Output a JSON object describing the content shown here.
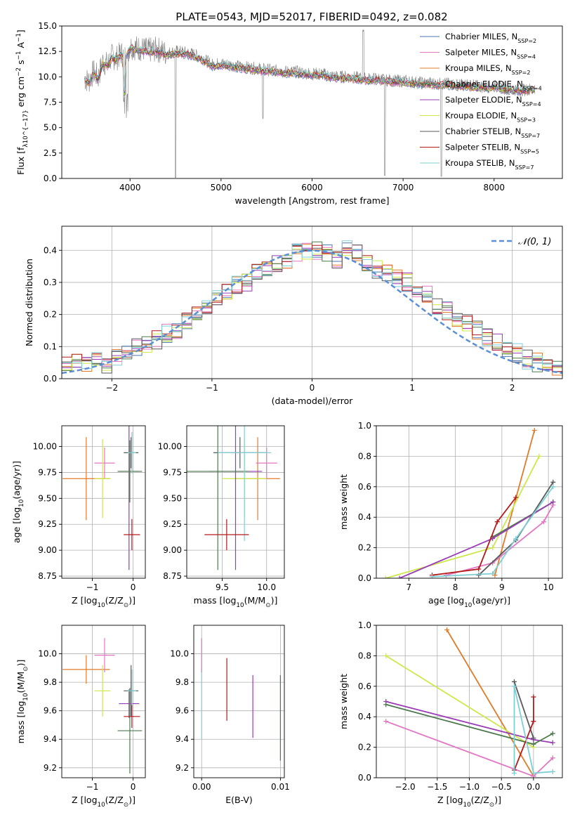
{
  "colors": {
    "chab_miles": "#4878b0",
    "salp_miles": "#e377c2",
    "krou_miles": "#e07b28",
    "chab_elodie": "#4d7a4d",
    "salp_elodie": "#9a3cb5",
    "krou_elodie": "#cde84a",
    "chab_stelib": "#5a5a5a",
    "salp_stelib": "#b31b1b",
    "krou_stelib": "#7ed0d6",
    "normal": "#5b8fd6",
    "grid": "#b0b0b0"
  },
  "chart_data": [
    {
      "type": "line",
      "title": "PLATE=0543, MJD=52017, FIBERID=0492, z=0.082",
      "xlabel": "wavelength [Angstrom, rest frame]",
      "ylabel": "Flux [f_λ 10^-17 erg cm^-2 s^-1 A^-1]",
      "xlim": [
        3250,
        8750
      ],
      "ylim": [
        0,
        15
      ],
      "xticks": [
        4000,
        5000,
        6000,
        7000,
        8000
      ],
      "yticks": [
        0.0,
        2.5,
        5.0,
        7.5,
        10.0,
        12.5,
        15.0
      ],
      "grid": false,
      "legend_position": "top-right",
      "legend": [
        {
          "label": "Chabrier MILES, N_SSP=2",
          "key": "chab_miles"
        },
        {
          "label": "Salpeter MILES, N_SSP=4",
          "key": "salp_miles"
        },
        {
          "label": "Kroupa MILES, N_SSP=2",
          "key": "krou_miles"
        },
        {
          "label": "Chabrier ELODIE, N_SSP=4",
          "key": "chab_elodie"
        },
        {
          "label": "Salpeter ELODIE, N_SSP=4",
          "key": "salp_elodie"
        },
        {
          "label": "Kroupa ELODIE, N_SSP=3",
          "key": "krou_elodie"
        },
        {
          "label": "Chabrier STELIB, N_SSP=7",
          "key": "chab_stelib"
        },
        {
          "label": "Salpeter STELIB, N_SSP=5",
          "key": "salp_stelib"
        },
        {
          "label": "Kroupa STELIB, N_SSP=7",
          "key": "krou_stelib"
        }
      ],
      "series": [
        {
          "name": "data",
          "x": [
            3500,
            3550,
            3600,
            3650,
            3700,
            3750,
            3800,
            3850,
            3900,
            3950,
            4000,
            4100,
            4200,
            4300,
            4400,
            4500,
            4600,
            4700,
            4800,
            4900,
            5000,
            5100,
            5200,
            5300,
            5400,
            5500,
            5600,
            5700,
            5800,
            5900,
            6000,
            6100,
            6200,
            6300,
            6400,
            6500,
            6600,
            6700,
            6800,
            6900,
            7000,
            7100,
            7200,
            7300,
            7400,
            7500,
            7600,
            7700,
            7800,
            7900,
            8000,
            8100,
            8200,
            8300,
            8400
          ],
          "y": [
            9.8,
            9.6,
            10.5,
            9.9,
            11.5,
            11.2,
            12.0,
            11.8,
            12.3,
            12.0,
            13.0,
            12.8,
            12.6,
            12.7,
            12.3,
            12.5,
            12.4,
            12.2,
            11.8,
            11.2,
            11.3,
            11.2,
            11.0,
            10.9,
            10.8,
            10.7,
            10.6,
            10.5,
            10.5,
            10.4,
            10.3,
            10.3,
            10.1,
            10.0,
            10.0,
            9.9,
            9.8,
            9.8,
            9.7,
            9.6,
            9.6,
            9.5,
            9.4,
            9.4,
            9.3,
            9.3,
            9.2,
            9.2,
            9.1,
            9.0,
            9.1,
            8.9,
            8.8,
            8.7,
            8.8
          ]
        },
        {
          "name": "Kroupa STELIB, N_SSP=7",
          "x": [
            3500,
            3600,
            3700,
            3800,
            3900,
            4000,
            4200,
            4400,
            4600,
            4800,
            5000,
            5200,
            5400,
            5600,
            5800,
            6000,
            6200,
            6400,
            6600,
            6800,
            7000,
            7200,
            7400,
            7600,
            7800,
            8000,
            8200,
            8400
          ],
          "y": [
            9.7,
            10.0,
            11.0,
            11.6,
            11.9,
            12.4,
            12.3,
            12.0,
            12.0,
            11.6,
            11.2,
            10.9,
            10.7,
            10.6,
            10.4,
            10.3,
            10.1,
            10.0,
            9.9,
            9.7,
            9.6,
            9.4,
            9.3,
            9.2,
            9.1,
            9.0,
            8.8,
            8.7
          ]
        },
        {
          "name": "Kroupa ELODIE, N_SSP=3",
          "x": [
            3500,
            3600,
            3700,
            3800,
            3900,
            4000,
            4200,
            4400,
            4600,
            4800,
            5000,
            5200,
            5400,
            5600,
            5800,
            6000,
            6200,
            6400,
            6600,
            6800,
            7000,
            7200,
            7400,
            7600,
            7800,
            8000,
            8200,
            8400
          ],
          "y": [
            9.6,
            10.1,
            11.1,
            11.8,
            12.2,
            12.8,
            12.8,
            12.4,
            12.3,
            11.8,
            11.3,
            11.0,
            10.8,
            10.6,
            10.5,
            10.3,
            10.2,
            10.0,
            9.9,
            9.8,
            9.6,
            9.5,
            9.4,
            9.3,
            9.2,
            9.0,
            8.9,
            8.8
          ]
        }
      ]
    },
    {
      "type": "line",
      "xlabel": "(data-model)/error",
      "ylabel": "Normed distribution",
      "xlim": [
        -2.5,
        2.5
      ],
      "ylim": [
        0,
        0.475
      ],
      "xticks": [
        -2,
        -1,
        0,
        1,
        2
      ],
      "yticks": [
        0.0,
        0.1,
        0.2,
        0.3,
        0.4
      ],
      "grid": true,
      "legend_position": "top-right",
      "legend": [
        {
          "label": "N(0,1)",
          "key": "normal"
        }
      ],
      "histogram_bin_width": 0.1,
      "histogram_envelope": [
        0.045,
        0.06,
        0.05,
        0.055,
        0.04,
        0.07,
        0.09,
        0.1,
        0.11,
        0.12,
        0.14,
        0.15,
        0.18,
        0.2,
        0.22,
        0.25,
        0.27,
        0.29,
        0.3,
        0.33,
        0.34,
        0.36,
        0.37,
        0.39,
        0.4,
        0.4,
        0.39,
        0.37,
        0.4,
        0.39,
        0.36,
        0.34,
        0.33,
        0.31,
        0.3,
        0.28,
        0.26,
        0.23,
        0.21,
        0.19,
        0.17,
        0.15,
        0.13,
        0.11,
        0.09,
        0.08,
        0.06,
        0.05,
        0.04,
        0.03
      ]
    },
    {
      "type": "scatter",
      "xlabel": "Z [log10(Z/Z⊙)]",
      "ylabel": "age [log10(age/yr)]",
      "xlim": [
        -1.75,
        0.3
      ],
      "ylim": [
        8.73,
        10.2
      ],
      "xticks": [
        -1,
        0
      ],
      "yticks": [
        8.75,
        9.0,
        9.25,
        9.5,
        9.75,
        10.0
      ],
      "grid": true,
      "points": [
        {
          "key": "krou_miles",
          "x": -1.15,
          "y": 9.69,
          "xerr": 0.58,
          "yerr": 0.4
        },
        {
          "key": "salp_miles",
          "x": -0.7,
          "y": 9.84,
          "xerr": 0.25,
          "yerr": 0.15
        },
        {
          "key": "krou_elodie",
          "x": -0.75,
          "y": 9.69,
          "xerr": 0.2,
          "yerr": 0.38
        },
        {
          "key": "chab_stelib",
          "x": -0.05,
          "y": 9.94,
          "xerr": 0.18,
          "yerr": 0.15
        },
        {
          "key": "salp_elodie",
          "x": -0.1,
          "y": 9.76,
          "xerr": 0.25,
          "yerr": 0.95
        },
        {
          "key": "chab_elodie",
          "x": -0.08,
          "y": 9.76,
          "xerr": 0.3,
          "yerr": 0.3
        },
        {
          "key": "krou_stelib",
          "x": -0.03,
          "y": 9.94,
          "xerr": 0.1,
          "yerr": 0.2
        },
        {
          "key": "salp_stelib",
          "x": -0.03,
          "y": 9.15,
          "xerr": 0.2,
          "yerr": 0.15
        }
      ]
    },
    {
      "type": "scatter",
      "xlabel": "mass [log10(M/M⊙)]",
      "ylabel": "",
      "xlim": [
        9.1,
        10.2
      ],
      "ylim": [
        8.73,
        10.2
      ],
      "xticks": [
        9.5,
        10.0
      ],
      "yticks": [
        8.75,
        9.0,
        9.25,
        9.5,
        9.75,
        10.0
      ],
      "grid": true,
      "points": [
        {
          "key": "krou_miles",
          "x": 9.9,
          "y": 9.69,
          "xerr": 0.25,
          "yerr": 0.4
        },
        {
          "key": "salp_miles",
          "x": 10.0,
          "y": 9.84,
          "xerr": 0.12,
          "yerr": 0.15
        },
        {
          "key": "krou_elodie",
          "x": 9.75,
          "y": 9.69,
          "xerr": 0.25,
          "yerr": 0.38
        },
        {
          "key": "chab_stelib",
          "x": 9.7,
          "y": 9.94,
          "xerr": 0.3,
          "yerr": 0.15
        },
        {
          "key": "salp_elodie",
          "x": 9.65,
          "y": 9.76,
          "xerr": 0.3,
          "yerr": 0.95
        },
        {
          "key": "chab_elodie",
          "x": 9.45,
          "y": 9.76,
          "xerr": 0.35,
          "yerr": 0.95
        },
        {
          "key": "krou_stelib",
          "x": 9.75,
          "y": 9.94,
          "xerr": 0.3,
          "yerr": 0.85
        },
        {
          "key": "salp_stelib",
          "x": 9.55,
          "y": 9.15,
          "xerr": 0.25,
          "yerr": 0.15
        }
      ]
    },
    {
      "type": "line",
      "xlabel": "age [log10(age/yr)]",
      "ylabel": "mass weight",
      "xlim": [
        6.3,
        10.3
      ],
      "ylim": [
        0,
        1.0
      ],
      "xticks": [
        7,
        8,
        9,
        10
      ],
      "yticks": [
        0.0,
        0.2,
        0.4,
        0.6,
        0.8,
        1.0
      ],
      "grid": true,
      "series": [
        {
          "key": "krou_miles",
          "x": [
            8.85,
            9.7
          ],
          "y": [
            0.02,
            0.97
          ]
        },
        {
          "key": "salp_miles",
          "x": [
            7.8,
            8.8,
            9.9,
            10.1
          ],
          "y": [
            0.02,
            0.1,
            0.37,
            0.48
          ]
        },
        {
          "key": "krou_elodie",
          "x": [
            6.5,
            8.8,
            9.8
          ],
          "y": [
            0.0,
            0.2,
            0.8
          ]
        },
        {
          "key": "chab_elodie",
          "x": [
            8.8,
            10.1
          ],
          "y": [
            0.27,
            0.5
          ]
        },
        {
          "key": "salp_elodie",
          "x": [
            6.8,
            8.8,
            10.1
          ],
          "y": [
            0.0,
            0.26,
            0.5
          ]
        },
        {
          "key": "chab_stelib",
          "x": [
            8.5,
            9.3,
            10.1
          ],
          "y": [
            0.02,
            0.25,
            0.63
          ]
        },
        {
          "key": "salp_stelib",
          "x": [
            7.5,
            8.5,
            8.9,
            9.3
          ],
          "y": [
            0.02,
            0.06,
            0.37,
            0.53
          ]
        },
        {
          "key": "krou_stelib",
          "x": [
            7.5,
            8.8,
            9.3,
            10.1
          ],
          "y": [
            0.01,
            0.03,
            0.26,
            0.6
          ]
        }
      ]
    },
    {
      "type": "scatter",
      "xlabel": "Z [log10(Z/Z⊙)]",
      "ylabel": "mass [log10(M/M⊙)]",
      "xlim": [
        -1.75,
        0.3
      ],
      "ylim": [
        9.13,
        10.2
      ],
      "xticks": [
        -1,
        0
      ],
      "yticks": [
        9.2,
        9.4,
        9.6,
        9.8,
        10.0
      ],
      "grid": true,
      "points": [
        {
          "key": "krou_miles",
          "x": -1.15,
          "y": 9.89,
          "xerr": 0.58,
          "yerr": 0.1
        },
        {
          "key": "salp_miles",
          "x": -0.7,
          "y": 9.99,
          "xerr": 0.25,
          "yerr": 0.12
        },
        {
          "key": "krou_elodie",
          "x": -0.75,
          "y": 9.74,
          "xerr": 0.2,
          "yerr": 0.18
        },
        {
          "key": "chab_stelib",
          "x": -0.05,
          "y": 9.74,
          "xerr": 0.18,
          "yerr": 0.18
        },
        {
          "key": "salp_elodie",
          "x": -0.1,
          "y": 9.65,
          "xerr": 0.25,
          "yerr": 0.1
        },
        {
          "key": "chab_elodie",
          "x": -0.08,
          "y": 9.46,
          "xerr": 0.3,
          "yerr": 0.3
        },
        {
          "key": "krou_stelib",
          "x": -0.03,
          "y": 9.74,
          "xerr": 0.1,
          "yerr": 0.15
        },
        {
          "key": "salp_stelib",
          "x": -0.03,
          "y": 9.56,
          "xerr": 0.2,
          "yerr": 0.08
        }
      ]
    },
    {
      "type": "scatter",
      "xlabel": "E(B-V)",
      "ylabel": "",
      "xlim": [
        -0.001,
        0.0105
      ],
      "ylim": [
        9.13,
        10.2
      ],
      "xticks": [
        0.0,
        0.01
      ],
      "yticks": [
        9.2,
        9.4,
        9.6,
        9.8,
        10.0
      ],
      "grid": true,
      "points": [
        {
          "key": "salp_stelib",
          "x": 0.0032,
          "y": 9.75,
          "xerr": 0,
          "yerr": 0.22
        },
        {
          "key": "salp_elodie",
          "x": 0.0065,
          "y": 9.63,
          "xerr": 0,
          "yerr": 0.22
        },
        {
          "key": "chab_elodie",
          "x": 0.01,
          "y": 9.55,
          "xerr": 0,
          "yerr": 0.3
        },
        {
          "key": "krou_stelib",
          "x": 0.0,
          "y": 9.75,
          "xerr": 0,
          "yerr": 0.35
        },
        {
          "key": "salp_miles",
          "x": 0.0,
          "y": 9.99,
          "xerr": 0,
          "yerr": 0.12
        }
      ]
    },
    {
      "type": "line",
      "xlabel": "Z [log10(Z/Z⊙)]",
      "ylabel": "mass weight",
      "xlim": [
        -2.45,
        0.45
      ],
      "ylim": [
        0,
        1.0
      ],
      "xticks": [
        -2.0,
        -1.5,
        -1.0,
        -0.5,
        0.0
      ],
      "yticks": [
        0.0,
        0.2,
        0.4,
        0.6,
        0.8,
        1.0
      ],
      "grid": true,
      "series": [
        {
          "key": "krou_miles",
          "x": [
            -1.35,
            0.0
          ],
          "y": [
            0.97,
            0.01
          ]
        },
        {
          "key": "salp_miles",
          "x": [
            -2.3,
            0.0,
            0.3
          ],
          "y": [
            0.37,
            0.01,
            0.13
          ]
        },
        {
          "key": "krou_elodie",
          "x": [
            -2.3,
            0.0
          ],
          "y": [
            0.8,
            0.2
          ]
        },
        {
          "key": "salp_elodie",
          "x": [
            -2.3,
            0.0,
            0.3
          ],
          "y": [
            0.5,
            0.25,
            0.23
          ]
        },
        {
          "key": "chab_elodie",
          "x": [
            -2.3,
            0.0,
            0.3
          ],
          "y": [
            0.48,
            0.22,
            0.29
          ]
        },
        {
          "key": "chab_stelib",
          "x": [
            -0.3,
            0.0
          ],
          "y": [
            0.63,
            0.26
          ]
        },
        {
          "key": "salp_stelib",
          "x": [
            -0.3,
            0.0,
            0.0
          ],
          "y": [
            0.05,
            0.37,
            0.53
          ]
        },
        {
          "key": "krou_stelib",
          "x": [
            -0.3,
            -0.3,
            0.0,
            0.3
          ],
          "y": [
            0.03,
            0.6,
            0.03,
            0.04
          ]
        }
      ]
    }
  ]
}
